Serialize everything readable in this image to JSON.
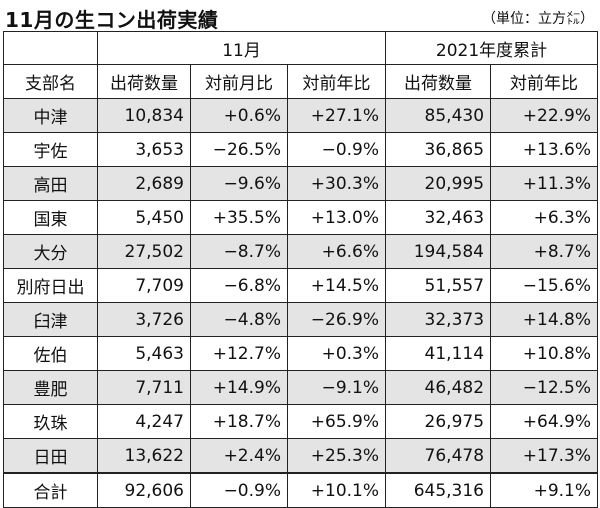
{
  "title": "11月の生コン出荷実績",
  "unit": "（単位：立方㍍）",
  "groups": {
    "month": "11月",
    "year": "2021年度累計"
  },
  "headers": [
    "支部名",
    "出荷数量",
    "対前月比",
    "対前年比",
    "出荷数量",
    "対前年比"
  ],
  "rows": [
    {
      "name": "中津",
      "vol": "10,834",
      "mom": "+0.6%",
      "yoy": "+27.1%",
      "cum_vol": "85,430",
      "cum_yoy": "+22.9%"
    },
    {
      "name": "宇佐",
      "vol": "3,653",
      "mom": "−26.5%",
      "yoy": "−0.9%",
      "cum_vol": "36,865",
      "cum_yoy": "+13.6%"
    },
    {
      "name": "高田",
      "vol": "2,689",
      "mom": "−9.6%",
      "yoy": "+30.3%",
      "cum_vol": "20,995",
      "cum_yoy": "+11.3%"
    },
    {
      "name": "国東",
      "vol": "5,450",
      "mom": "+35.5%",
      "yoy": "+13.0%",
      "cum_vol": "32,463",
      "cum_yoy": "+6.3%"
    },
    {
      "name": "大分",
      "vol": "27,502",
      "mom": "−8.7%",
      "yoy": "+6.6%",
      "cum_vol": "194,584",
      "cum_yoy": "+8.7%"
    },
    {
      "name": "別府日出",
      "vol": "7,709",
      "mom": "−6.8%",
      "yoy": "+14.5%",
      "cum_vol": "51,557",
      "cum_yoy": "−15.6%"
    },
    {
      "name": "臼津",
      "vol": "3,726",
      "mom": "−4.8%",
      "yoy": "−26.9%",
      "cum_vol": "32,373",
      "cum_yoy": "+14.8%"
    },
    {
      "name": "佐伯",
      "vol": "5,463",
      "mom": "+12.7%",
      "yoy": "+0.3%",
      "cum_vol": "41,114",
      "cum_yoy": "+10.8%"
    },
    {
      "name": "豊肥",
      "vol": "7,711",
      "mom": "+14.9%",
      "yoy": "−9.1%",
      "cum_vol": "46,482",
      "cum_yoy": "−12.5%"
    },
    {
      "name": "玖珠",
      "vol": "4,247",
      "mom": "+18.7%",
      "yoy": "+65.9%",
      "cum_vol": "26,975",
      "cum_yoy": "+64.9%"
    },
    {
      "name": "日田",
      "vol": "13,622",
      "mom": "+2.4%",
      "yoy": "+25.3%",
      "cum_vol": "76,478",
      "cum_yoy": "+17.3%"
    }
  ],
  "total": {
    "name": "合計",
    "vol": "92,606",
    "mom": "−0.9%",
    "yoy": "+10.1%",
    "cum_vol": "645,316",
    "cum_yoy": "+9.1%"
  },
  "colors": {
    "shade": "#e4e4e4",
    "border": "#222222"
  }
}
